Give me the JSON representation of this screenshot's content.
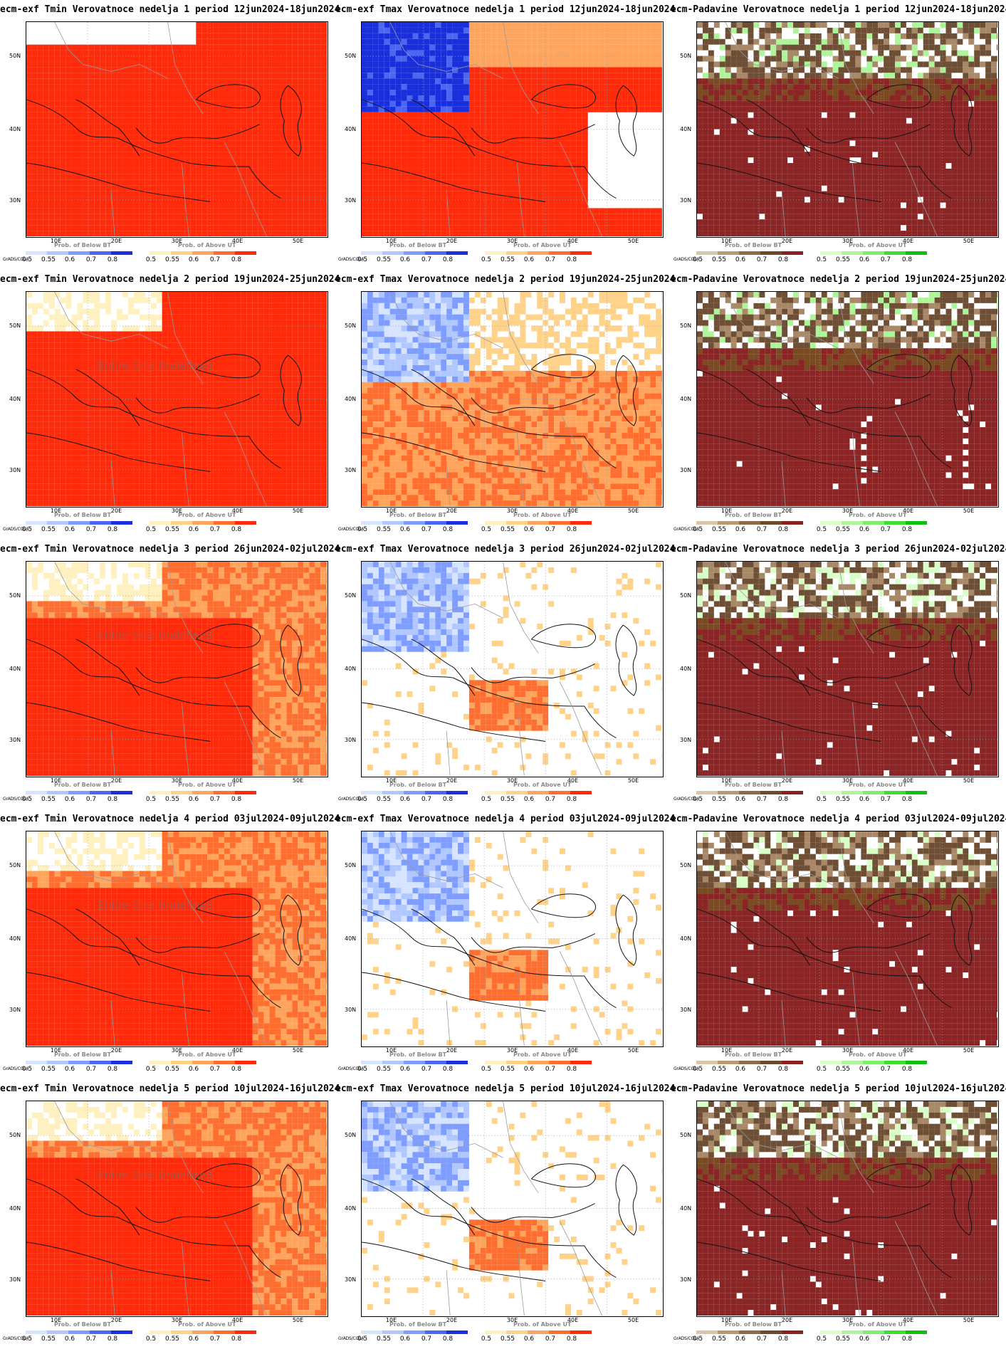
{
  "variables": [
    {
      "key": "tmin",
      "prefix": "ecm-exf Tmin Verovatnoce nedelja"
    },
    {
      "key": "tmax",
      "prefix": "ecm-exf Tmax Verovatnoce nedelja"
    },
    {
      "key": "pad",
      "prefix": "ecm-Padavine Verovatnoce nedelja"
    }
  ],
  "weeks": [
    {
      "n": "1",
      "period": "period 12jun2024-18jun2024"
    },
    {
      "n": "2",
      "period": "period 19jun2024-25jun2024"
    },
    {
      "n": "3",
      "period": "period 26jun2024-02jul2024"
    },
    {
      "n": "4",
      "period": "period 03jul2024-09jul2024"
    },
    {
      "n": "5",
      "period": "period 10jul2024-16jul2024"
    }
  ],
  "lat_ticks": [
    "50N",
    "40N",
    "30N"
  ],
  "lon_ticks": [
    "10E",
    "20E",
    "30E",
    "40E",
    "50E"
  ],
  "legend": {
    "grads_label": "GrADS/COLA",
    "below_title": "Prob. of Below BT",
    "above_title": "Prob. of Above UT",
    "below_labels": [
      "0.5",
      "0.55",
      "0.6",
      "0.7",
      "0.8"
    ],
    "above_labels": [
      "0.5",
      "0.55",
      "0.6",
      "0.7",
      "0.8"
    ],
    "temp_below_colors": [
      "#d6e4ff",
      "#b0c8ff",
      "#7f9cff",
      "#4b66f0",
      "#1a2fdc"
    ],
    "temp_above_colors": [
      "#fff0bf",
      "#ffd28a",
      "#ffa45c",
      "#ff6e2e",
      "#ff2a0a"
    ],
    "precip_below_colors": [
      "#d8c6a8",
      "#b89a72",
      "#8f6a48",
      "#6e4a2a",
      "#8b2020"
    ],
    "precip_above_colors": [
      "#d8ffc8",
      "#aef59a",
      "#7ded6a",
      "#3fdc32",
      "#10c010"
    ]
  },
  "watermark": "Entire Grid Undefined",
  "watermark_panels": [
    "tmin-2",
    "tmin-3",
    "tmin-4",
    "tmin-5"
  ]
}
